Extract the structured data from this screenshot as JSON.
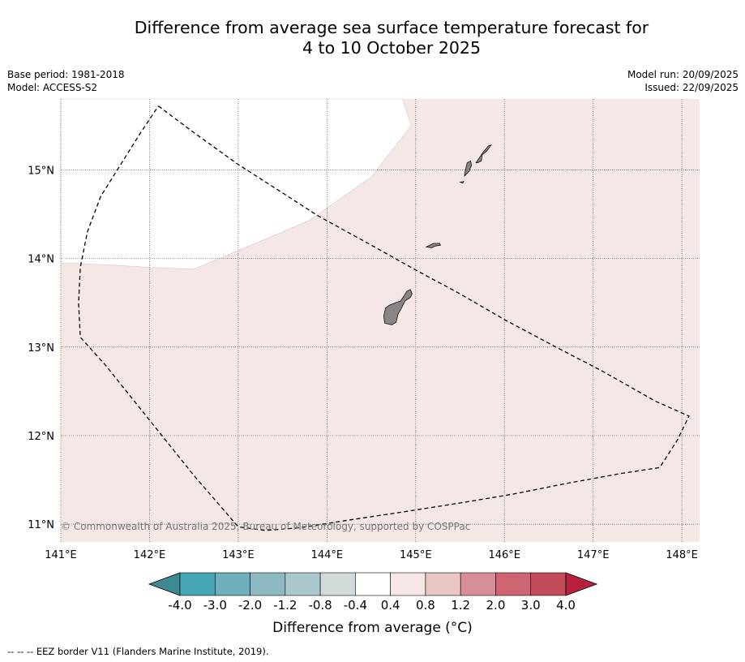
{
  "title": {
    "line1": "Difference from average sea surface temperature forecast for",
    "line2": "4 to 10 October 2025"
  },
  "meta": {
    "base_period": "Base period: 1981-2018",
    "model": "Model: ACCESS-S2",
    "model_run": "Model run: 20/09/2025",
    "issued": "Issued: 22/09/2025"
  },
  "map": {
    "extent": {
      "lon": [
        141.0,
        148.2
      ],
      "lat": [
        10.8,
        15.8
      ]
    },
    "lon_ticks": [
      "141°E",
      "142°E",
      "143°E",
      "144°E",
      "145°E",
      "146°E",
      "147°E",
      "148°E"
    ],
    "lat_ticks": [
      "11°N",
      "12°N",
      "13°N",
      "14°N",
      "15°N"
    ],
    "anomaly_fill_color": "#f4e7e6",
    "land_color": "#8a8584",
    "copyright": "© Commonwealth of Australia 2025, Bureau of Meteorology, supported by COSPPac",
    "islands": [
      {
        "name": "guam",
        "lonlat": [
          [
            144.66,
            13.44
          ],
          [
            144.7,
            13.47
          ],
          [
            144.77,
            13.5
          ],
          [
            144.83,
            13.52
          ],
          [
            144.87,
            13.58
          ],
          [
            144.9,
            13.63
          ],
          [
            144.94,
            13.65
          ],
          [
            144.96,
            13.6
          ],
          [
            144.94,
            13.56
          ],
          [
            144.88,
            13.52
          ],
          [
            144.84,
            13.44
          ],
          [
            144.8,
            13.37
          ],
          [
            144.78,
            13.28
          ],
          [
            144.73,
            13.25
          ],
          [
            144.65,
            13.27
          ],
          [
            144.64,
            13.35
          ]
        ]
      },
      {
        "name": "rota",
        "lonlat": [
          [
            145.12,
            14.13
          ],
          [
            145.2,
            14.17
          ],
          [
            145.27,
            14.17
          ],
          [
            145.28,
            14.15
          ],
          [
            145.22,
            14.14
          ],
          [
            145.18,
            14.12
          ]
        ]
      },
      {
        "name": "tinian",
        "lonlat": [
          [
            145.55,
            14.93
          ],
          [
            145.6,
            14.98
          ],
          [
            145.63,
            15.05
          ],
          [
            145.62,
            15.1
          ],
          [
            145.58,
            15.08
          ],
          [
            145.56,
            15.0
          ]
        ]
      },
      {
        "name": "saipan",
        "lonlat": [
          [
            145.68,
            15.08
          ],
          [
            145.72,
            15.14
          ],
          [
            145.76,
            15.2
          ],
          [
            145.82,
            15.27
          ],
          [
            145.85,
            15.28
          ],
          [
            145.8,
            15.21
          ],
          [
            145.75,
            15.17
          ],
          [
            145.74,
            15.1
          ],
          [
            145.7,
            15.08
          ]
        ]
      },
      {
        "name": "aguijan",
        "lonlat": [
          [
            145.5,
            14.86
          ],
          [
            145.54,
            14.87
          ],
          [
            145.53,
            14.85
          ]
        ]
      }
    ],
    "white_region_lonlat": [
      [
        141.0,
        15.8
      ],
      [
        144.85,
        15.8
      ],
      [
        144.95,
        15.5
      ],
      [
        144.5,
        14.92
      ],
      [
        143.8,
        14.43
      ],
      [
        143.5,
        14.3
      ],
      [
        142.5,
        13.88
      ],
      [
        142.0,
        13.9
      ],
      [
        141.5,
        13.93
      ],
      [
        141.0,
        13.95
      ]
    ],
    "eez_border_lonlat": [
      [
        142.1,
        15.72
      ],
      [
        142.5,
        15.42
      ],
      [
        143.0,
        15.06
      ],
      [
        143.5,
        14.74
      ],
      [
        143.9,
        14.48
      ],
      [
        144.5,
        14.15
      ],
      [
        145.0,
        13.87
      ],
      [
        145.5,
        13.6
      ],
      [
        146.0,
        13.31
      ],
      [
        146.6,
        12.99
      ],
      [
        147.1,
        12.73
      ],
      [
        147.7,
        12.39
      ],
      [
        148.08,
        12.22
      ],
      [
        147.95,
        11.95
      ],
      [
        147.75,
        11.64
      ],
      [
        147.3,
        11.57
      ],
      [
        146.7,
        11.46
      ],
      [
        146.1,
        11.34
      ],
      [
        145.5,
        11.24
      ],
      [
        144.8,
        11.13
      ],
      [
        144.2,
        11.04
      ],
      [
        143.7,
        10.96
      ],
      [
        143.3,
        10.93
      ],
      [
        143.0,
        10.97
      ],
      [
        142.5,
        11.55
      ],
      [
        141.9,
        12.3
      ],
      [
        141.5,
        12.8
      ],
      [
        141.22,
        13.11
      ],
      [
        141.2,
        13.5
      ],
      [
        141.22,
        13.9
      ],
      [
        141.3,
        14.3
      ],
      [
        141.45,
        14.7
      ],
      [
        141.7,
        15.1
      ],
      [
        141.9,
        15.42
      ],
      [
        142.1,
        15.72
      ]
    ]
  },
  "colorbar": {
    "ticks": [
      "-4.0",
      "-3.0",
      "-2.0",
      "-1.2",
      "-0.8",
      "-0.4",
      "0.4",
      "0.8",
      "1.2",
      "2.0",
      "3.0",
      "4.0"
    ],
    "colors": [
      "#47a6b5",
      "#6eafbd",
      "#8db9c3",
      "#a8c8cc",
      "#d2d9db",
      "#ffffff",
      "#f4e7e6",
      "#e9c5c4",
      "#d78e97",
      "#cd6672",
      "#c24a59"
    ],
    "under_color": "#3e8894",
    "over_color": "#b8213e",
    "label": "Difference from average (°C)"
  },
  "footer": {
    "legend_symbol": "-- -- --",
    "legend_text": "EEZ border V11 (Flanders Marine Institute, 2019)."
  }
}
